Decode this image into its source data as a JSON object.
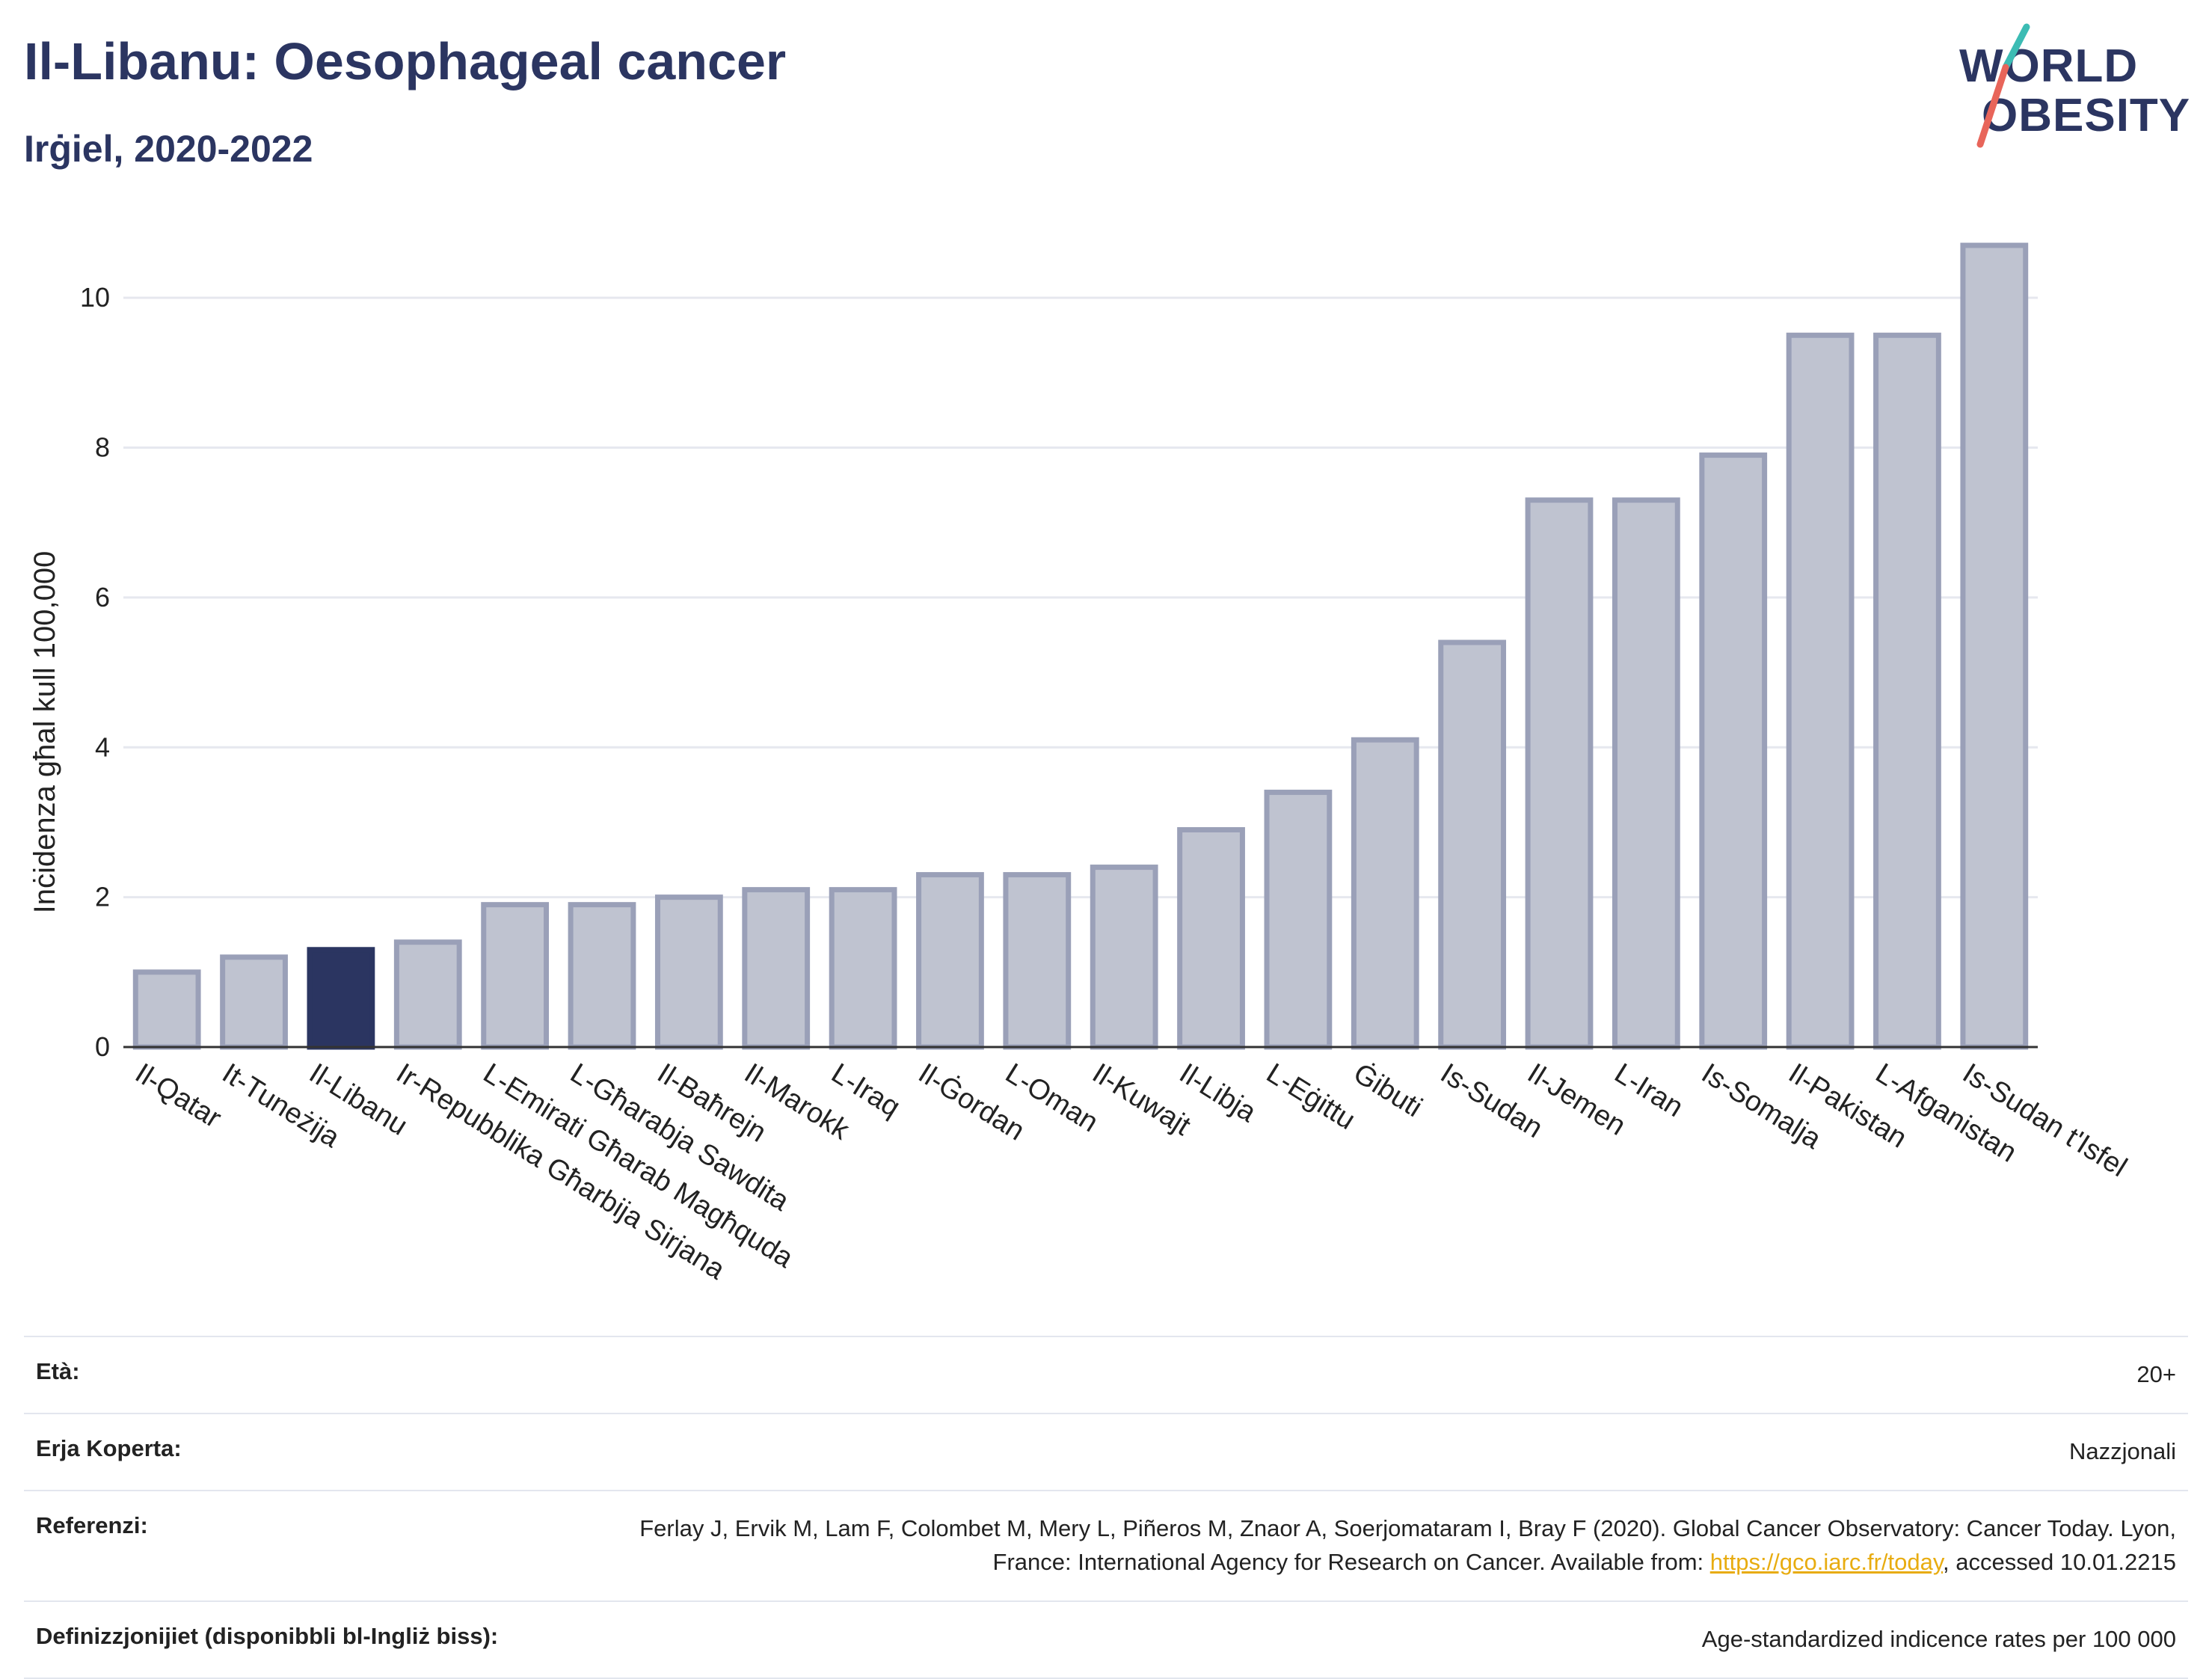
{
  "header": {
    "title": "Il-Libanu: Oesophageal cancer",
    "subtitle": "Irġiel, 2020-2022"
  },
  "logo": {
    "line1": "WORLD",
    "line2": "OBESITY",
    "colors": {
      "text": "#2b3561",
      "slash_top": "#3cbcb4",
      "slash_bottom": "#e8655a"
    }
  },
  "chart_data": {
    "type": "bar",
    "ylabel": "Inċidenza għal kull 100,000",
    "ylim": [
      0,
      11
    ],
    "yticks": [
      0,
      2,
      4,
      6,
      8,
      10
    ],
    "grid": true,
    "categories": [
      "Il-Qatar",
      "It-Tuneżija",
      "Il-Libanu",
      "Ir-Repubblika Għarbija Sirjana",
      "L-Emirati Għarab Magħquda",
      "L-Għarabja Sawdita",
      "Il-Baħrejn",
      "Il-Marokk",
      "L-Iraq",
      "Il-Ġordan",
      "L-Oman",
      "Il-Kuwajt",
      "Il-Libja",
      "L-Eġittu",
      "Ġibuti",
      "Is-Sudan",
      "Il-Jemen",
      "L-Iran",
      "Is-Somalja",
      "Il-Pakistan",
      "L-Afganistan",
      "Is-Sudan t'Isfel"
    ],
    "values": [
      1.0,
      1.2,
      1.3,
      1.4,
      1.9,
      1.9,
      2.0,
      2.1,
      2.1,
      2.3,
      2.3,
      2.4,
      2.9,
      3.4,
      4.1,
      5.4,
      7.3,
      7.3,
      7.9,
      9.5,
      9.5,
      10.7
    ],
    "highlight": "Il-Libanu",
    "colors": {
      "bar": "#bfc3d0",
      "bar_border": "#9aa0b8",
      "highlight": "#2b3561"
    }
  },
  "footer": {
    "rows": [
      {
        "label": "Età:",
        "value": "20+"
      },
      {
        "label": "Erja Koperta:",
        "value": "Nazzjonali"
      },
      {
        "label": "Referenzi:",
        "value": "Ferlay J, Ervik M, Lam F, Colombet M, Mery L, Piñeros M, Znaor A, Soerjomataram I, Bray F (2020). Global Cancer Observatory: Cancer Today. Lyon, France: International Agency for Research on Cancer. Available from: ",
        "link": "https://gco.iarc.fr/today",
        "suffix": ", accessed 10.01.2215"
      },
      {
        "label": "Definizzjonijiet (disponibbli bl-Ingliż biss):",
        "value": "Age-standardized indicence rates per 100 000"
      }
    ]
  }
}
